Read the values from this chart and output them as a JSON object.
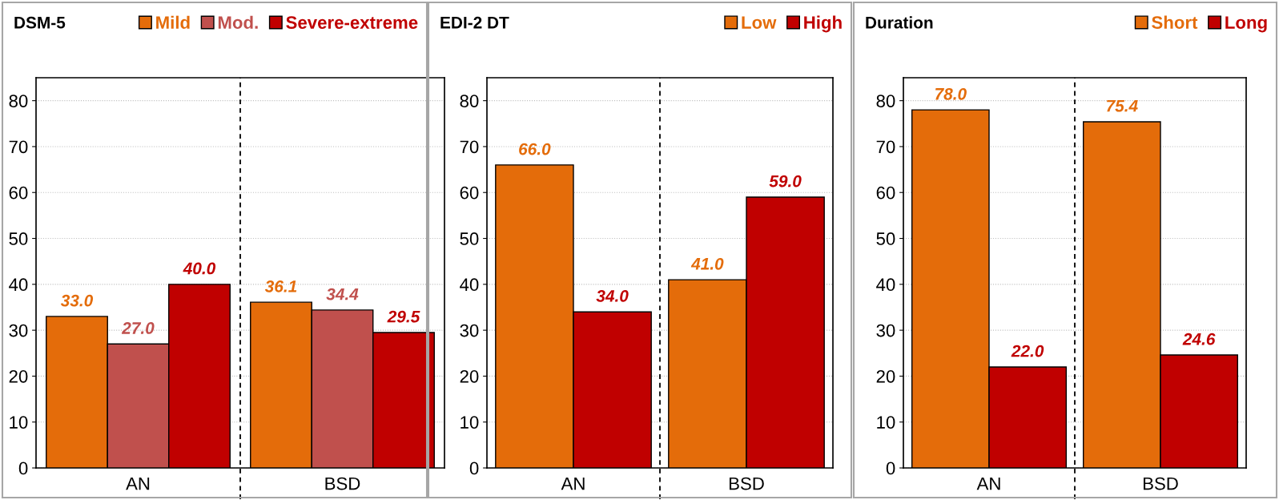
{
  "chart_data": [
    {
      "type": "bar",
      "title": "DSM-5",
      "categories": [
        "AN",
        "BSD"
      ],
      "series": [
        {
          "name": "Mild",
          "color": "#e46c0a",
          "values": [
            33.0,
            36.1
          ],
          "value_labels": [
            "33.0",
            "36.1"
          ]
        },
        {
          "name": "Mod.",
          "color": "#c0504d",
          "values": [
            27.0,
            34.4
          ],
          "value_labels": [
            "27.0",
            "34.4"
          ]
        },
        {
          "name": "Severe-extreme",
          "color": "#c00000",
          "values": [
            40.0,
            29.5
          ],
          "value_labels": [
            "40.0",
            "29.5"
          ]
        }
      ],
      "ylim": [
        0,
        85
      ],
      "yticks": [
        0,
        10,
        20,
        30,
        40,
        50,
        60,
        70,
        80
      ],
      "grid": "y",
      "legend": "top right"
    },
    {
      "type": "bar",
      "title": "EDI-2 DT",
      "categories": [
        "AN",
        "BSD"
      ],
      "series": [
        {
          "name": "Low",
          "color": "#e46c0a",
          "values": [
            66.0,
            41.0
          ],
          "value_labels": [
            "66.0",
            "41.0"
          ]
        },
        {
          "name": "High",
          "color": "#c00000",
          "values": [
            34.0,
            59.0
          ],
          "value_labels": [
            "34.0",
            "59.0"
          ]
        }
      ],
      "ylim": [
        0,
        85
      ],
      "yticks": [
        0,
        10,
        20,
        30,
        40,
        50,
        60,
        70,
        80
      ],
      "grid": "y",
      "legend": "top right"
    },
    {
      "type": "bar",
      "title": "Duration",
      "categories": [
        "AN",
        "BSD"
      ],
      "series": [
        {
          "name": "Short",
          "color": "#e46c0a",
          "values": [
            78.0,
            75.4
          ],
          "value_labels": [
            "78.0",
            "75.4"
          ]
        },
        {
          "name": "Long",
          "color": "#c00000",
          "values": [
            22.0,
            24.6
          ],
          "value_labels": [
            "22.0",
            "24.6"
          ]
        }
      ],
      "ylim": [
        0,
        85
      ],
      "yticks": [
        0,
        10,
        20,
        30,
        40,
        50,
        60,
        70,
        80
      ],
      "grid": "y",
      "legend": "top right"
    }
  ]
}
